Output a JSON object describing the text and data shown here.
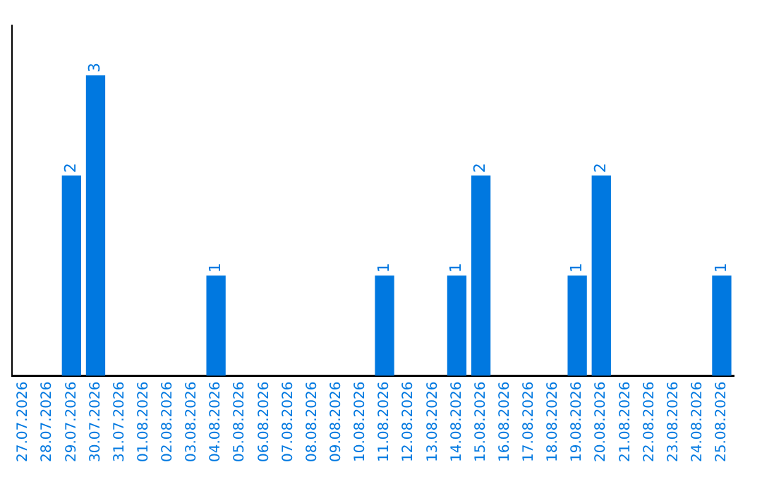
{
  "chart_data": {
    "type": "bar",
    "categories": [
      "27.07.2026",
      "28.07.2026",
      "29.07.2026",
      "30.07.2026",
      "31.07.2026",
      "01.08.2026",
      "02.08.2026",
      "03.08.2026",
      "04.08.2026",
      "05.08.2026",
      "06.08.2026",
      "07.08.2026",
      "08.08.2026",
      "09.08.2026",
      "10.08.2026",
      "11.08.2026",
      "12.08.2026",
      "13.08.2026",
      "14.08.2026",
      "15.08.2026",
      "16.08.2026",
      "17.08.2026",
      "18.08.2026",
      "19.08.2026",
      "20.08.2026",
      "21.08.2026",
      "22.08.2026",
      "23.08.2026",
      "24.08.2026",
      "25.08.2026"
    ],
    "values": [
      0,
      0,
      2,
      3,
      0,
      0,
      0,
      0,
      1,
      0,
      0,
      0,
      0,
      0,
      0,
      1,
      0,
      0,
      1,
      2,
      0,
      0,
      0,
      1,
      2,
      0,
      0,
      0,
      0,
      1
    ],
    "value_labels": [
      null,
      null,
      "2",
      "3",
      null,
      null,
      null,
      null,
      "1",
      null,
      null,
      null,
      null,
      null,
      null,
      "1",
      null,
      null,
      "1",
      "2",
      null,
      null,
      null,
      "1",
      "2",
      null,
      null,
      null,
      null,
      "1"
    ],
    "color": "#0078e0",
    "grid": false,
    "legend": false,
    "tick_labels": "x"
  }
}
